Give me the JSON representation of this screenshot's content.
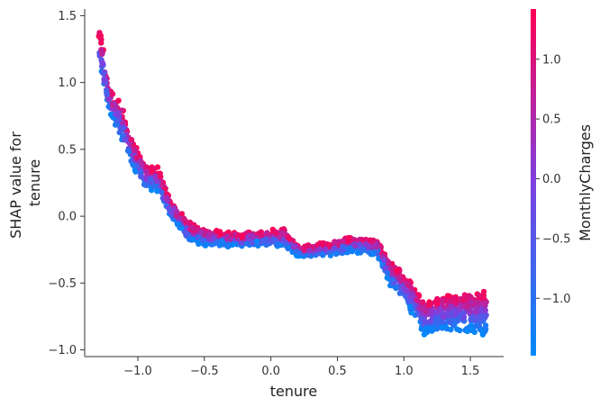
{
  "chart_data": {
    "type": "scatter",
    "xlabel": "tenure",
    "ylabel_line1": "SHAP value for",
    "ylabel_line2": "tenure",
    "colorbar_label": "MonthlyCharges",
    "xlim": [
      -1.4,
      1.75
    ],
    "ylim": [
      -1.05,
      1.55
    ],
    "xticks": [
      -1.0,
      -0.5,
      0.0,
      0.5,
      1.0,
      1.5
    ],
    "xtick_labels": [
      "−1.0",
      "−0.5",
      "0.0",
      "0.5",
      "1.0",
      "1.5"
    ],
    "yticks": [
      -1.0,
      -0.5,
      0.0,
      0.5,
      1.0,
      1.5
    ],
    "ytick_labels": [
      "−1.0",
      "−0.5",
      "0.0",
      "0.5",
      "1.0",
      "1.5"
    ],
    "colorbar_range": [
      -1.48,
      1.42
    ],
    "colorbar_ticks": [
      -1.0,
      -0.5,
      0.0,
      0.5,
      1.0
    ],
    "colorbar_tick_labels": [
      "−1.0",
      "−0.5",
      "0.0",
      "0.5",
      "1.0"
    ],
    "colormap": [
      "#008afb",
      "#7e3fe0",
      "#ff0052"
    ],
    "grid": false,
    "series_profile": [
      {
        "tenure": -1.28,
        "shap_low": 1.05,
        "shap_high": 1.42,
        "spread": 0.08
      },
      {
        "tenure": -1.22,
        "shap_low": 0.8,
        "shap_high": 0.95,
        "spread": 0.07
      },
      {
        "tenure": -1.13,
        "shap_low": 0.55,
        "shap_high": 0.88,
        "spread": 0.08
      },
      {
        "tenure": -1.05,
        "shap_low": 0.38,
        "shap_high": 0.6,
        "spread": 0.06
      },
      {
        "tenure": -0.95,
        "shap_low": 0.2,
        "shap_high": 0.4,
        "spread": 0.05
      },
      {
        "tenure": -0.85,
        "shap_low": 0.17,
        "shap_high": 0.38,
        "spread": 0.05
      },
      {
        "tenure": -0.75,
        "shap_low": -0.02,
        "shap_high": 0.12,
        "spread": 0.05
      },
      {
        "tenure": -0.62,
        "shap_low": -0.2,
        "shap_high": -0.03,
        "spread": 0.05
      },
      {
        "tenure": -0.5,
        "shap_low": -0.22,
        "shap_high": -0.1,
        "spread": 0.04
      },
      {
        "tenure": -0.3,
        "shap_low": -0.23,
        "shap_high": -0.12,
        "spread": 0.04
      },
      {
        "tenure": -0.1,
        "shap_low": -0.22,
        "shap_high": -0.12,
        "spread": 0.04
      },
      {
        "tenure": 0.1,
        "shap_low": -0.24,
        "shap_high": -0.08,
        "spread": 0.04
      },
      {
        "tenure": 0.2,
        "shap_low": -0.3,
        "shap_high": -0.22,
        "spread": 0.04
      },
      {
        "tenure": 0.4,
        "shap_low": -0.3,
        "shap_high": -0.2,
        "spread": 0.04
      },
      {
        "tenure": 0.6,
        "shap_low": -0.28,
        "shap_high": -0.14,
        "spread": 0.04
      },
      {
        "tenure": 0.8,
        "shap_low": -0.3,
        "shap_high": -0.17,
        "spread": 0.04
      },
      {
        "tenure": 0.9,
        "shap_low": -0.55,
        "shap_high": -0.32,
        "spread": 0.05
      },
      {
        "tenure": 1.0,
        "shap_low": -0.65,
        "shap_high": -0.4,
        "spread": 0.05
      },
      {
        "tenure": 1.15,
        "shap_low": -0.92,
        "shap_high": -0.58,
        "spread": 0.06
      },
      {
        "tenure": 1.35,
        "shap_low": -0.88,
        "shap_high": -0.55,
        "spread": 0.06
      },
      {
        "tenure": 1.6,
        "shap_low": -0.92,
        "shap_high": -0.52,
        "spread": 0.06
      }
    ]
  }
}
